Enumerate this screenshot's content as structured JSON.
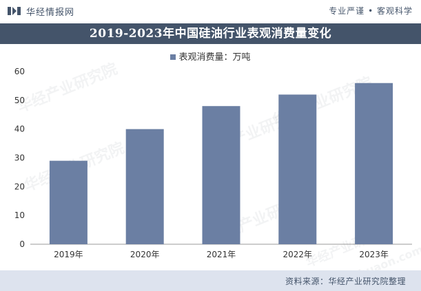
{
  "header": {
    "brand": "华经情报网",
    "slogan": "专业严谨 • 客观科学"
  },
  "footer": {
    "source": "资料来源：华经产业研究院整理"
  },
  "watermark": {
    "text": "华经产业研究院",
    "url": "www.huaon.com"
  },
  "colors": {
    "bar": "#6b7fa3",
    "title_bg": "#44546a",
    "footer_bg": "#dde3ee"
  },
  "chart_data": {
    "type": "bar",
    "title": "2019-2023年中国硅油行业表观消费量变化",
    "xlabel": "",
    "ylabel": "",
    "categories": [
      "2019年",
      "2020年",
      "2021年",
      "2022年",
      "2023年"
    ],
    "series": [
      {
        "name": "表观消费量：万吨",
        "values": [
          29,
          40,
          48,
          52,
          56
        ]
      }
    ],
    "ylim": [
      0,
      60
    ],
    "yticks": [
      0,
      10,
      20,
      30,
      40,
      50,
      60
    ],
    "grid": false,
    "legend": "top-center"
  }
}
